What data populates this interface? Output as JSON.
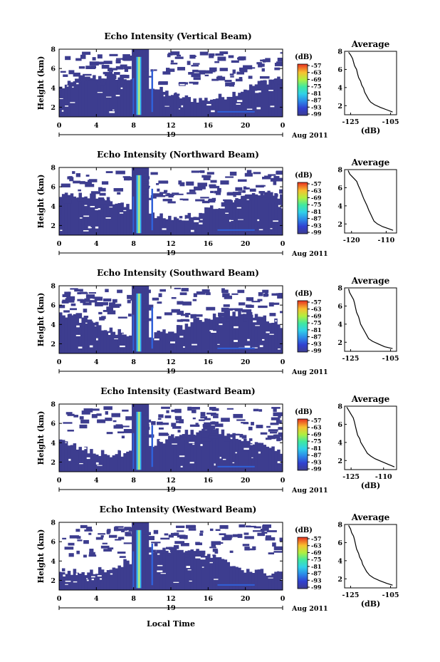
{
  "figure": {
    "x_axis_label": "Local Time",
    "date_label": "Aug 2011",
    "day_label": "19",
    "avg_title": "Average",
    "avg_unit": "(dB)",
    "colorbar_unit": "(dB)",
    "colorbar_ticks": [
      "-57",
      "-63",
      "-69",
      "-75",
      "-81",
      "-87",
      "-93",
      "-99"
    ],
    "colors": {
      "background_dark": "#3d3d8f",
      "peak": "#e02020",
      "strong": "#f5e640",
      "mid": "#40e0d0",
      "weak": "#3060d8"
    }
  },
  "chart_data": [
    {
      "type": "heatmap",
      "title": "Echo Intensity (Vertical Beam)",
      "ylabel": "Height (km)",
      "x_ticks": [
        "0",
        "4",
        "8",
        "12",
        "16",
        "20",
        "0"
      ],
      "y_ticks": [
        "2",
        "4",
        "6",
        "8"
      ],
      "xlim": [
        0,
        24
      ],
      "ylim": [
        1,
        8
      ],
      "avg_profile": {
        "x_ticks": [
          "-125",
          "-105"
        ],
        "xlim": [
          -128,
          -102
        ],
        "ylim": [
          1,
          8
        ],
        "points": [
          [
            -126,
            7.9
          ],
          [
            -125,
            7.6
          ],
          [
            -124,
            7.2
          ],
          [
            -123.5,
            6.8
          ],
          [
            -123,
            6.4
          ],
          [
            -122,
            6.0
          ],
          [
            -121.5,
            5.5
          ],
          [
            -121,
            5.1
          ],
          [
            -120,
            4.7
          ],
          [
            -119.5,
            4.3
          ],
          [
            -118.5,
            3.9
          ],
          [
            -118,
            3.5
          ],
          [
            -117,
            3.1
          ],
          [
            -116,
            2.7
          ],
          [
            -115,
            2.4
          ],
          [
            -113,
            2.1
          ],
          [
            -110,
            1.8
          ],
          [
            -107,
            1.55
          ],
          [
            -104,
            1.3
          ]
        ]
      }
    },
    {
      "type": "heatmap",
      "title": "Echo Intensity (Northward Beam)",
      "ylabel": "Height (km)",
      "x_ticks": [
        "0",
        "4",
        "8",
        "12",
        "16",
        "20",
        "0"
      ],
      "y_ticks": [
        "2",
        "4",
        "6",
        "8"
      ],
      "xlim": [
        0,
        24
      ],
      "ylim": [
        1,
        8
      ],
      "avg_profile": {
        "x_ticks": [
          "-120",
          "-110"
        ],
        "xlim": [
          -122,
          -107
        ],
        "ylim": [
          1,
          8
        ],
        "points": [
          [
            -121,
            7.9
          ],
          [
            -120.5,
            7.5
          ],
          [
            -119.5,
            7.1
          ],
          [
            -118.5,
            6.7
          ],
          [
            -118,
            6.2
          ],
          [
            -117.5,
            5.8
          ],
          [
            -117,
            5.3
          ],
          [
            -116.5,
            4.8
          ],
          [
            -116,
            4.4
          ],
          [
            -115.5,
            4.0
          ],
          [
            -115,
            3.5
          ],
          [
            -114.5,
            3.1
          ],
          [
            -114,
            2.7
          ],
          [
            -113.5,
            2.3
          ],
          [
            -112.5,
            2.0
          ],
          [
            -111,
            1.7
          ],
          [
            -109.5,
            1.5
          ],
          [
            -108,
            1.3
          ]
        ]
      }
    },
    {
      "type": "heatmap",
      "title": "Echo Intensity (Southward Beam)",
      "ylabel": "Height (km)",
      "x_ticks": [
        "0",
        "4",
        "8",
        "12",
        "16",
        "20",
        "0"
      ],
      "y_ticks": [
        "2",
        "4",
        "6",
        "8"
      ],
      "xlim": [
        0,
        24
      ],
      "ylim": [
        1,
        8
      ],
      "avg_profile": {
        "x_ticks": [
          "-125",
          "-105"
        ],
        "xlim": [
          -128,
          -102
        ],
        "ylim": [
          1,
          8
        ],
        "points": [
          [
            -126,
            7.9
          ],
          [
            -125.5,
            7.5
          ],
          [
            -124.5,
            7.1
          ],
          [
            -123.5,
            6.7
          ],
          [
            -123,
            6.3
          ],
          [
            -122.5,
            5.8
          ],
          [
            -122,
            5.3
          ],
          [
            -121,
            4.8
          ],
          [
            -120.5,
            4.4
          ],
          [
            -120,
            4.0
          ],
          [
            -119,
            3.6
          ],
          [
            -118,
            3.2
          ],
          [
            -117,
            2.8
          ],
          [
            -116,
            2.4
          ],
          [
            -114,
            2.1
          ],
          [
            -111,
            1.8
          ],
          [
            -108,
            1.5
          ],
          [
            -104,
            1.3
          ]
        ]
      }
    },
    {
      "type": "heatmap",
      "title": "Echo Intensity (Eastward Beam)",
      "ylabel": "Height (km)",
      "x_ticks": [
        "0",
        "4",
        "8",
        "12",
        "16",
        "20",
        "0"
      ],
      "y_ticks": [
        "2",
        "4",
        "6",
        "8"
      ],
      "xlim": [
        0,
        24
      ],
      "ylim": [
        1,
        8
      ],
      "avg_profile": {
        "x_ticks": [
          "-125",
          "-110"
        ],
        "xlim": [
          -128,
          -104
        ],
        "ylim": [
          1,
          8
        ],
        "points": [
          [
            -127,
            7.9
          ],
          [
            -126,
            7.5
          ],
          [
            -125,
            7.1
          ],
          [
            -124,
            6.7
          ],
          [
            -123.5,
            6.3
          ],
          [
            -123,
            5.8
          ],
          [
            -122.5,
            5.3
          ],
          [
            -122,
            4.8
          ],
          [
            -121,
            4.4
          ],
          [
            -120.5,
            4.0
          ],
          [
            -119.5,
            3.6
          ],
          [
            -118.5,
            3.2
          ],
          [
            -117.5,
            2.8
          ],
          [
            -116,
            2.5
          ],
          [
            -114,
            2.2
          ],
          [
            -111,
            1.9
          ],
          [
            -108,
            1.6
          ],
          [
            -105,
            1.3
          ]
        ]
      }
    },
    {
      "type": "heatmap",
      "title": "Echo Intensity (Westward Beam)",
      "ylabel": "Height (km)",
      "x_ticks": [
        "0",
        "4",
        "8",
        "12",
        "16",
        "20",
        "0"
      ],
      "y_ticks": [
        "2",
        "4",
        "6",
        "8"
      ],
      "xlim": [
        0,
        24
      ],
      "ylim": [
        1,
        8
      ],
      "avg_profile": {
        "x_ticks": [
          "-125",
          "-105"
        ],
        "xlim": [
          -128,
          -102
        ],
        "ylim": [
          1,
          8
        ],
        "points": [
          [
            -126,
            7.9
          ],
          [
            -125,
            7.5
          ],
          [
            -124.5,
            7.1
          ],
          [
            -123.5,
            6.7
          ],
          [
            -123,
            6.3
          ],
          [
            -122.5,
            5.8
          ],
          [
            -122,
            5.3
          ],
          [
            -121,
            4.8
          ],
          [
            -120.5,
            4.4
          ],
          [
            -119.5,
            4.0
          ],
          [
            -119,
            3.6
          ],
          [
            -118,
            3.2
          ],
          [
            -117,
            2.8
          ],
          [
            -115.5,
            2.4
          ],
          [
            -113.5,
            2.1
          ],
          [
            -110.5,
            1.8
          ],
          [
            -107,
            1.5
          ],
          [
            -104,
            1.3
          ]
        ]
      }
    }
  ]
}
